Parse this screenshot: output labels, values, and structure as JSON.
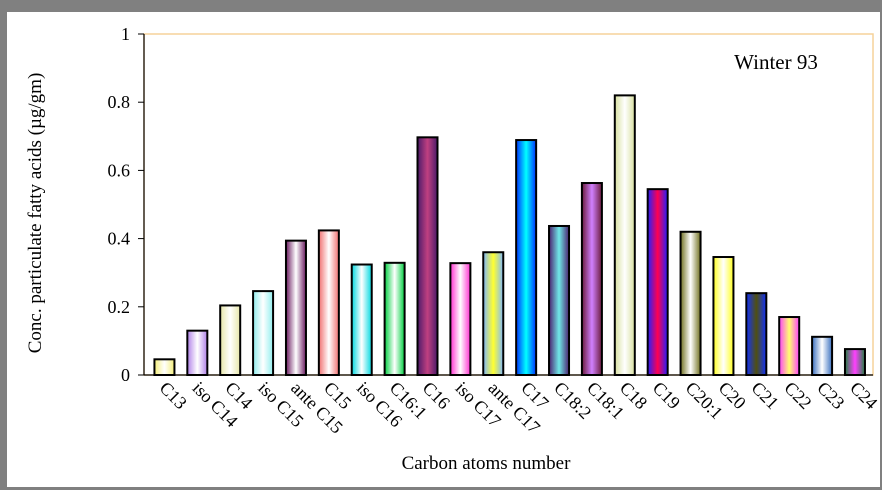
{
  "chart_data": {
    "type": "bar",
    "title": "",
    "annotation": "Winter 93",
    "xlabel": "Carbon atoms number",
    "ylabel": "Conc. particulate fatty acids (µg/gm)",
    "ylim": [
      0,
      1
    ],
    "yticks": [
      "0",
      "0.2",
      "0.4",
      "0.6",
      "0.8",
      "1"
    ],
    "grid": false,
    "legend": "none",
    "categories": [
      "C13",
      "iso C14",
      "C14",
      "iso C15",
      "ante C15",
      "C15",
      "iso C16",
      "C16:1",
      "C16",
      "iso C17",
      "ante C17",
      "C17",
      "C18:2",
      "C18:1",
      "C18",
      "C19",
      "C20:1",
      "C20",
      "C21",
      "C22",
      "C23",
      "C24"
    ],
    "values": [
      0.046,
      0.13,
      0.204,
      0.246,
      0.394,
      0.424,
      0.324,
      0.329,
      0.697,
      0.328,
      0.36,
      0.689,
      0.437,
      0.563,
      0.82,
      0.545,
      0.42,
      0.346,
      0.24,
      0.17,
      0.112,
      0.076
    ],
    "colors": [
      [
        "#ffffff",
        "#f4ee78"
      ],
      [
        "#ffffff",
        "#b080e8"
      ],
      [
        "#ffffff",
        "#e6e6a8"
      ],
      [
        "#ffffff",
        "#90eeee"
      ],
      [
        "#ffffff",
        "#6a1a60"
      ],
      [
        "#ffffff",
        "#f07070"
      ],
      [
        "#ffffff",
        "#00d8e0"
      ],
      [
        "#ffffff",
        "#00d040"
      ],
      [
        "#c04080",
        "#4a1a6a"
      ],
      [
        "#ffffff",
        "#ff30d0"
      ],
      [
        "#ffff30",
        "#80b8ff"
      ],
      [
        "#00ffff",
        "#0030ff"
      ],
      [
        "#70e8e8",
        "#4a2070"
      ],
      [
        "#d080ff",
        "#6a1a3a"
      ],
      [
        "#ffffff",
        "#d8e0a0"
      ],
      [
        "#ff0050",
        "#2020ff"
      ],
      [
        "#ffffff",
        "#707020"
      ],
      [
        "#ffffff",
        "#ffff20"
      ],
      [
        "#505010",
        "#1030ff"
      ],
      [
        "#ffff70",
        "#ff40ff"
      ],
      [
        "#ffffff",
        "#3a70c0"
      ],
      [
        "#ff40ff",
        "#208040"
      ]
    ],
    "axis_color": "#000000",
    "plot_border_color": "#f5d29a"
  }
}
